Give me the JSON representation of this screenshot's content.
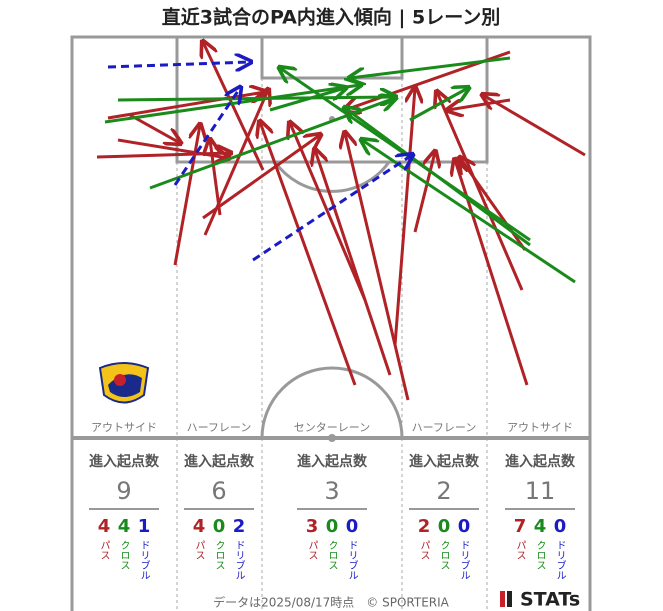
{
  "title": "直近3試合のPA内進入傾向 | 5レーン別",
  "lanes": [
    {
      "name": "アウトサイド",
      "label": "進入起点数",
      "total": "9",
      "breakdown": [
        {
          "value": "4",
          "label": "パス"
        },
        {
          "value": "4",
          "label": "クロス"
        },
        {
          "value": "1",
          "label": "ドリブル"
        }
      ]
    },
    {
      "name": "ハーフレーン",
      "label": "進入起点数",
      "total": "6",
      "breakdown": [
        {
          "value": "4",
          "label": "パス"
        },
        {
          "value": "0",
          "label": "クロス"
        },
        {
          "value": "2",
          "label": "ドリブル"
        }
      ]
    },
    {
      "name": "センターレーン",
      "label": "進入起点数",
      "total": "3",
      "breakdown": [
        {
          "value": "3",
          "label": "パス"
        },
        {
          "value": "0",
          "label": "クロス"
        },
        {
          "value": "0",
          "label": "ドリブル"
        }
      ]
    },
    {
      "name": "ハーフレーン",
      "label": "進入起点数",
      "total": "2",
      "breakdown": [
        {
          "value": "2",
          "label": "パス"
        },
        {
          "value": "0",
          "label": "クロス"
        },
        {
          "value": "0",
          "label": "ドリブル"
        }
      ]
    },
    {
      "name": "アウトサイド",
      "label": "進入起点数",
      "total": "11",
      "breakdown": [
        {
          "value": "7",
          "label": "パス"
        },
        {
          "value": "4",
          "label": "クロス"
        },
        {
          "value": "0",
          "label": "ドリブル"
        }
      ]
    }
  ],
  "footer": "データは2025/08/17時点　© SPORTERIA",
  "logo": "STATs"
}
